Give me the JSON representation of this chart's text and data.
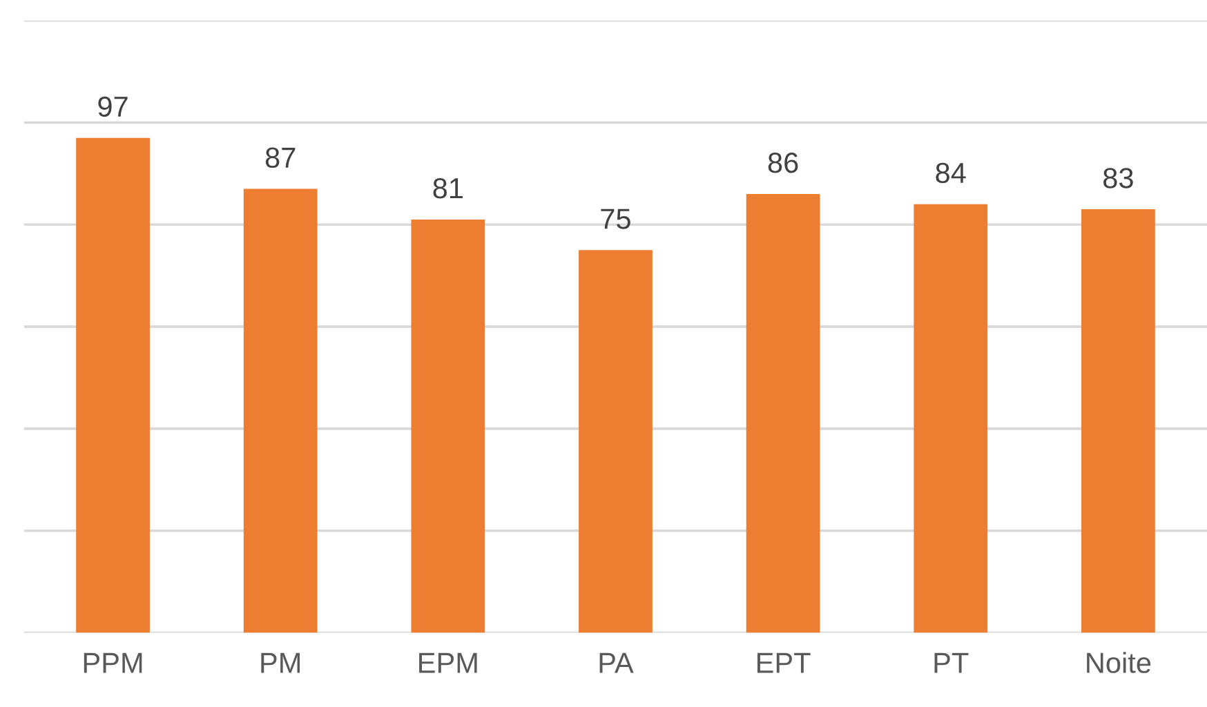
{
  "chart_data": {
    "type": "bar",
    "categories": [
      "PPM",
      "PM",
      "EPM",
      "PA",
      "EPT",
      "PT",
      "Noite"
    ],
    "values": [
      97,
      87,
      81,
      75,
      86,
      84,
      83
    ],
    "color": "#ed7d31",
    "ylim": [
      0,
      120
    ],
    "yticks": [
      {
        "value": 0,
        "label": null
      },
      {
        "value": 20,
        "label": null
      },
      {
        "value": 40,
        "label": null
      },
      {
        "value": 60,
        "label": null
      },
      {
        "value": 80,
        "label": null
      },
      {
        "value": 100,
        "label": null
      },
      {
        "value": 120,
        "label": null
      }
    ],
    "tick_labels": "x",
    "grid": "y",
    "data_labels": true
  }
}
